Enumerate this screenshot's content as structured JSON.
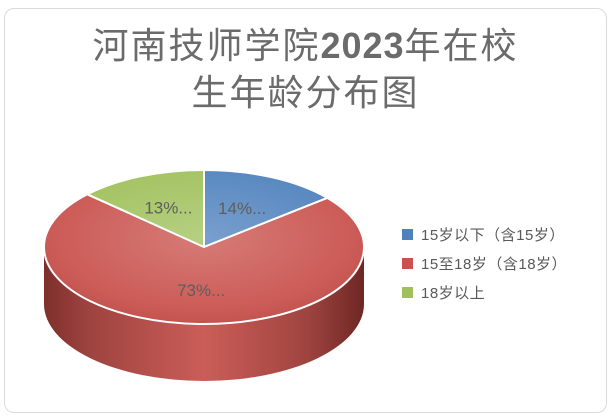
{
  "frame": {
    "background": "#FFFFFF",
    "border_color": "#DADADA"
  },
  "title": {
    "line1_prefix": "河南技师学院",
    "line1_year": "2023",
    "line1_suffix": "年在校",
    "line2": "生年龄分布图",
    "full": "河南技师学院2023年在校生年龄分布图",
    "color": "#6B6B6B"
  },
  "chart_data": {
    "type": "pie",
    "style": "3d",
    "title": "河南技师学院2023年在校生年龄分布图",
    "categories": [
      "15岁以下（含15岁）",
      "15至18岁（含18岁）",
      "18岁以上"
    ],
    "values": [
      14,
      73,
      13
    ],
    "unit": "percent",
    "slice_labels": [
      "14%...",
      "73%...",
      "13%..."
    ],
    "colors": [
      "#4E81BD",
      "#C9524D",
      "#9FC05A"
    ],
    "side_wall_colors": [
      "#7E2F2C",
      "#9C423E",
      "#CB5D58",
      "#A04440",
      "#6E2724"
    ],
    "start_angle_deg": 0,
    "direction": "clockwise",
    "legend_position": "right",
    "label_color": "#5E5E5E",
    "label_font_px": 17,
    "legend_text_color": "#595959"
  }
}
